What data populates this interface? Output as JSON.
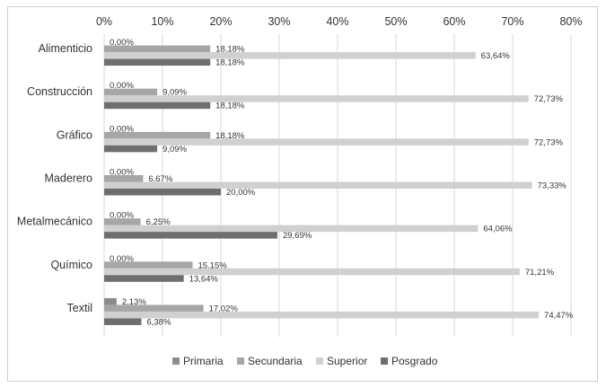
{
  "chart_data": {
    "type": "bar",
    "orientation": "horizontal",
    "categories": [
      "Alimenticio",
      "Construcción",
      "Gráfico",
      "Maderero",
      "Metalmecánico",
      "Químico",
      "Textil"
    ],
    "series": [
      {
        "name": "Primaria",
        "values": [
          0.0,
          0.0,
          0.0,
          0.0,
          0.0,
          0.0,
          2.13
        ],
        "labels": [
          "0,00%",
          "0,00%",
          "0,00%",
          "0,00%",
          "0,00%",
          "0,00%",
          "2,13%"
        ]
      },
      {
        "name": "Secundaria",
        "values": [
          18.18,
          9.09,
          18.18,
          6.67,
          6.25,
          15.15,
          17.02
        ],
        "labels": [
          "18,18%",
          "9,09%",
          "18,18%",
          "6,67%",
          "6,25%",
          "15,15%",
          "17,02%"
        ]
      },
      {
        "name": "Superior",
        "values": [
          63.64,
          72.73,
          72.73,
          73.33,
          64.06,
          71.21,
          74.47
        ],
        "labels": [
          "63,64%",
          "72,73%",
          "72,73%",
          "73,33%",
          "64,06%",
          "71,21%",
          "74,47%"
        ]
      },
      {
        "name": "Posgrado",
        "values": [
          18.18,
          18.18,
          9.09,
          20.0,
          29.69,
          13.64,
          6.38
        ],
        "labels": [
          "18,18%",
          "18,18%",
          "9,09%",
          "20,00%",
          "29,69%",
          "13,64%",
          "6,38%"
        ]
      }
    ],
    "xlim": [
      0,
      80
    ],
    "x_ticks": [
      "0%",
      "10%",
      "20%",
      "30%",
      "40%",
      "50%",
      "60%",
      "70%",
      "80%"
    ],
    "x_axis_position": "top",
    "grid": true,
    "legend": "bottom",
    "colors": {
      "Primaria": "#8c8c8c",
      "Secundaria": "#a6a6a6",
      "Superior": "#d0d0d0",
      "Posgrado": "#6e6e6e"
    },
    "title": "",
    "xlabel": "",
    "ylabel": ""
  }
}
